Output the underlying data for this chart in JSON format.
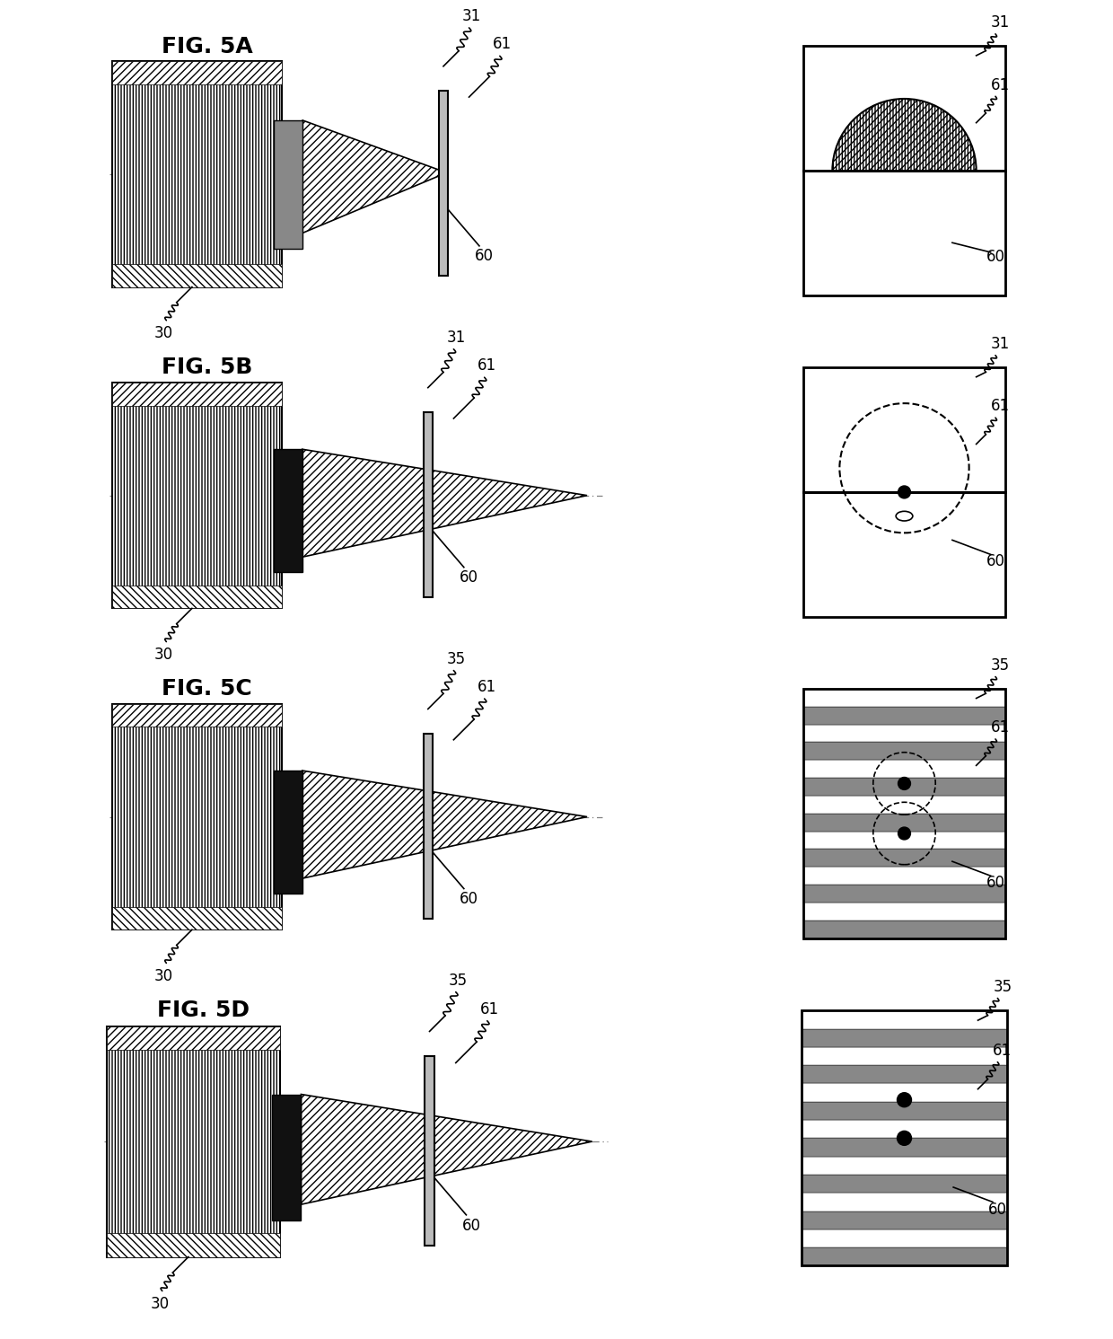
{
  "bg_color": "#ffffff",
  "figures": [
    "FIG. 5A",
    "FIG. 5B",
    "FIG. 5C",
    "FIG. 5D"
  ],
  "ref31_label": "31",
  "ref35_label": "35",
  "ref61_label": "61",
  "ref60_label": "60",
  "ref30_label": "30",
  "body_hatch": "////",
  "beam_hatch": "////",
  "stripe_dark": "#888888",
  "stripe_light": "#ffffff",
  "aperture_dark_5a": "#888888",
  "aperture_dark": "#111111",
  "slit_color": "#cccccc",
  "n_stripes": 14,
  "label_fontsize": 12,
  "title_fontsize": 18
}
